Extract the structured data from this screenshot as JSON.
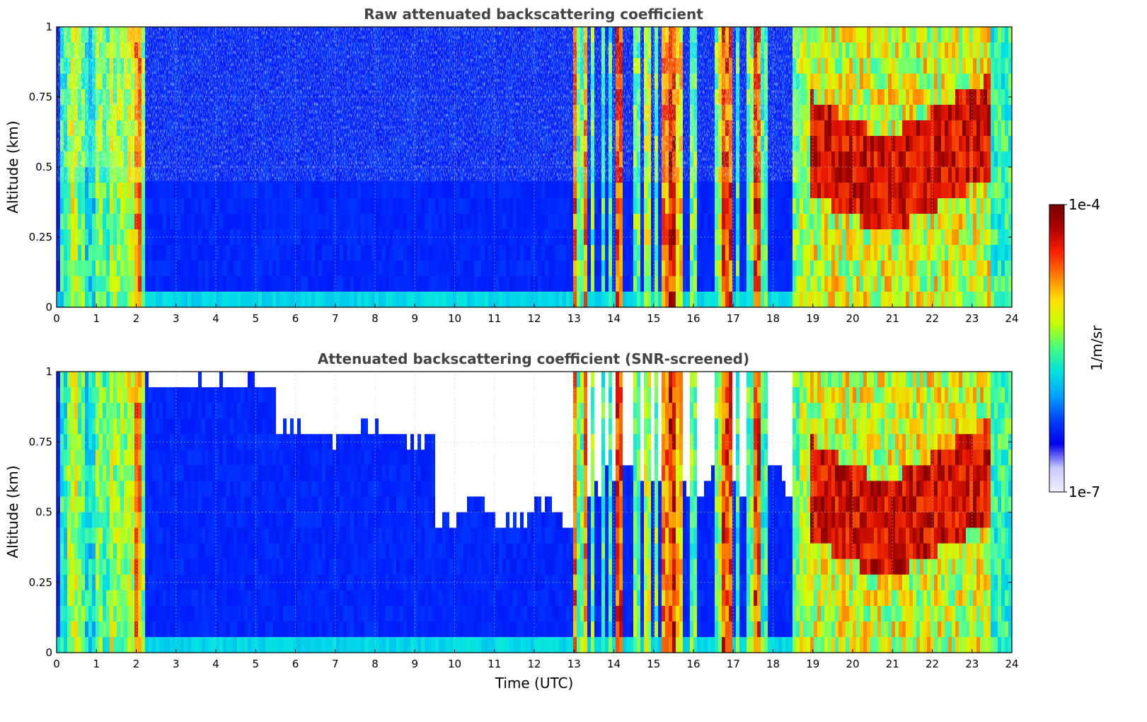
{
  "chart_data": [
    {
      "type": "heatmap",
      "title": "Raw attenuated backscattering coefficient",
      "xlabel": "",
      "ylabel": "Altitude (km)",
      "xlim": [
        0,
        24
      ],
      "ylim": [
        0,
        1
      ],
      "x_ticks": [
        0,
        1,
        2,
        3,
        4,
        5,
        6,
        7,
        8,
        9,
        10,
        11,
        12,
        13,
        14,
        15,
        16,
        17,
        18,
        19,
        20,
        21,
        22,
        23,
        24
      ],
      "y_ticks": [
        "0",
        "0.25",
        "0.5",
        "0.75",
        "1"
      ],
      "grid": true,
      "screened": false,
      "colormap": "jet",
      "value_units": "1/m/sr",
      "value_range": [
        "1e-7",
        "1e-4"
      ]
    },
    {
      "type": "heatmap",
      "title": "Attenuated backscattering coefficient (SNR-screened)",
      "xlabel": "Time (UTC)",
      "ylabel": "Altitude (km)",
      "xlim": [
        0,
        24
      ],
      "ylim": [
        0,
        1
      ],
      "x_ticks": [
        0,
        1,
        2,
        3,
        4,
        5,
        6,
        7,
        8,
        9,
        10,
        11,
        12,
        13,
        14,
        15,
        16,
        17,
        18,
        19,
        20,
        21,
        22,
        23,
        24
      ],
      "y_ticks": [
        "0",
        "0.25",
        "0.5",
        "0.75",
        "1"
      ],
      "grid": true,
      "screened": true,
      "colormap": "jet",
      "value_units": "1/m/sr",
      "value_range": [
        "1e-7",
        "1e-4"
      ]
    }
  ],
  "colorbar": {
    "label": "1/m/sr",
    "max_label": "1e-4",
    "min_label": "1e-7",
    "colors": [
      "#f0f0ff",
      "#c8c8ff",
      "#0000f0",
      "#0040ff",
      "#00a0ff",
      "#00e0e0",
      "#40ff80",
      "#c0ff00",
      "#ffe000",
      "#ff8000",
      "#ff2000",
      "#b00000",
      "#780000"
    ]
  }
}
